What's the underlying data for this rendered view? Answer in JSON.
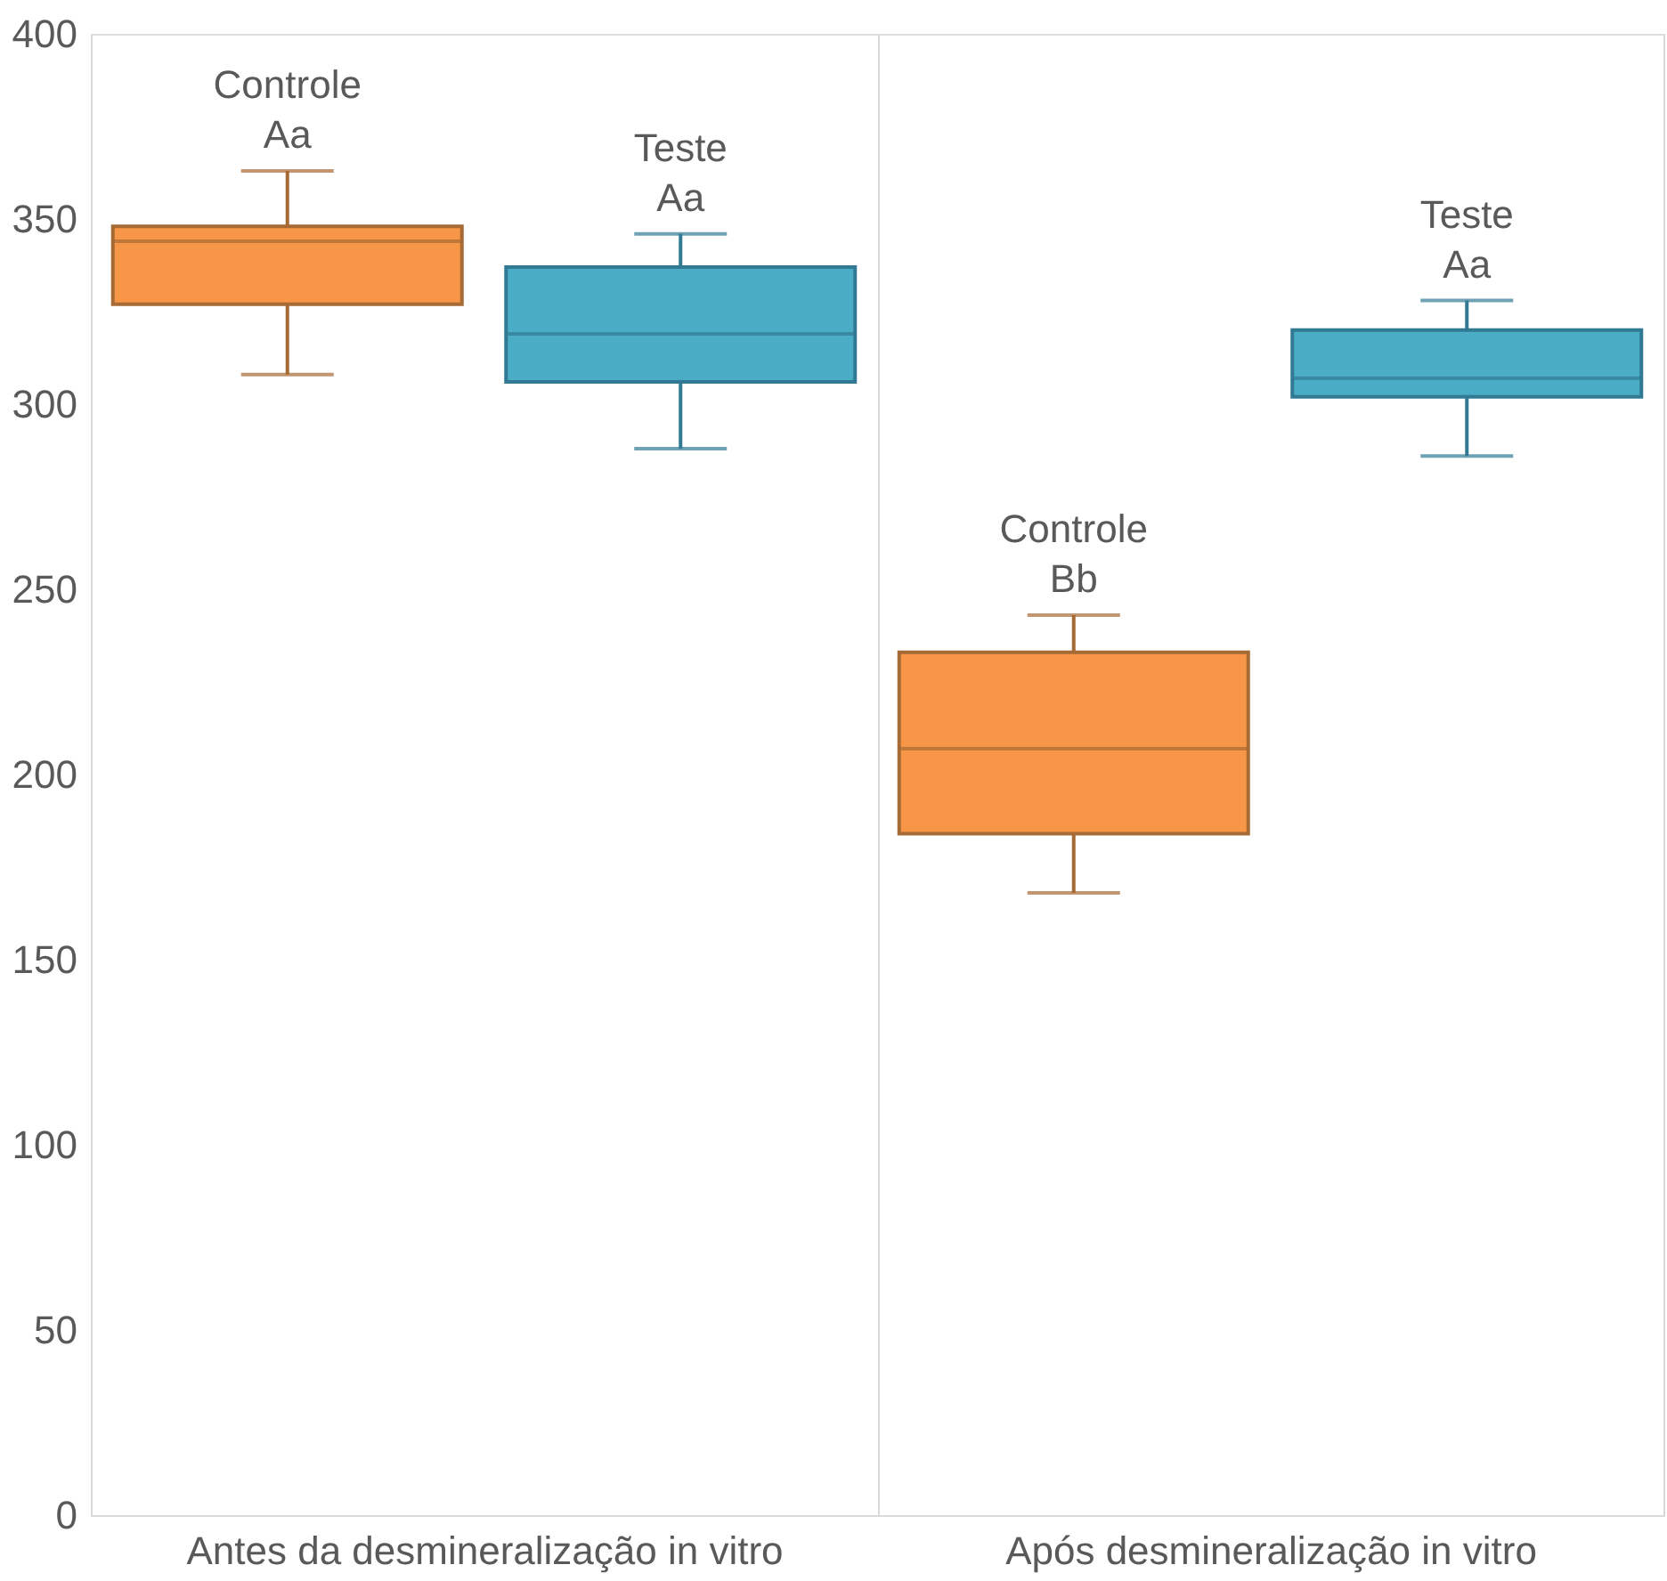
{
  "chart_data": {
    "type": "box",
    "categories": [
      "Antes da desmineralização in vitro",
      "Após desmineralização in vitro"
    ],
    "series": [
      {
        "color": "#f79646",
        "boxes": [
          {
            "low": 308,
            "q1": 327,
            "median": 344,
            "q3": 348,
            "high": 363
          },
          {
            "low": 168,
            "q1": 184,
            "median": 207,
            "q3": 233,
            "high": 243
          }
        ]
      },
      {
        "color": "#4bacc6",
        "boxes": [
          {
            "low": 288,
            "q1": 306,
            "median": 319,
            "q3": 337,
            "high": 346
          },
          {
            "low": 286,
            "q1": 302,
            "median": 307,
            "q3": 320,
            "high": 328
          }
        ]
      }
    ],
    "annotations": [
      "Controle\nAa",
      "Teste\nAa",
      "Controle\nBb",
      "Teste\nAa"
    ],
    "ylim": [
      0,
      400
    ],
    "yticks": [
      0,
      50,
      100,
      150,
      200,
      250,
      300,
      350,
      400
    ],
    "grid": "x"
  }
}
